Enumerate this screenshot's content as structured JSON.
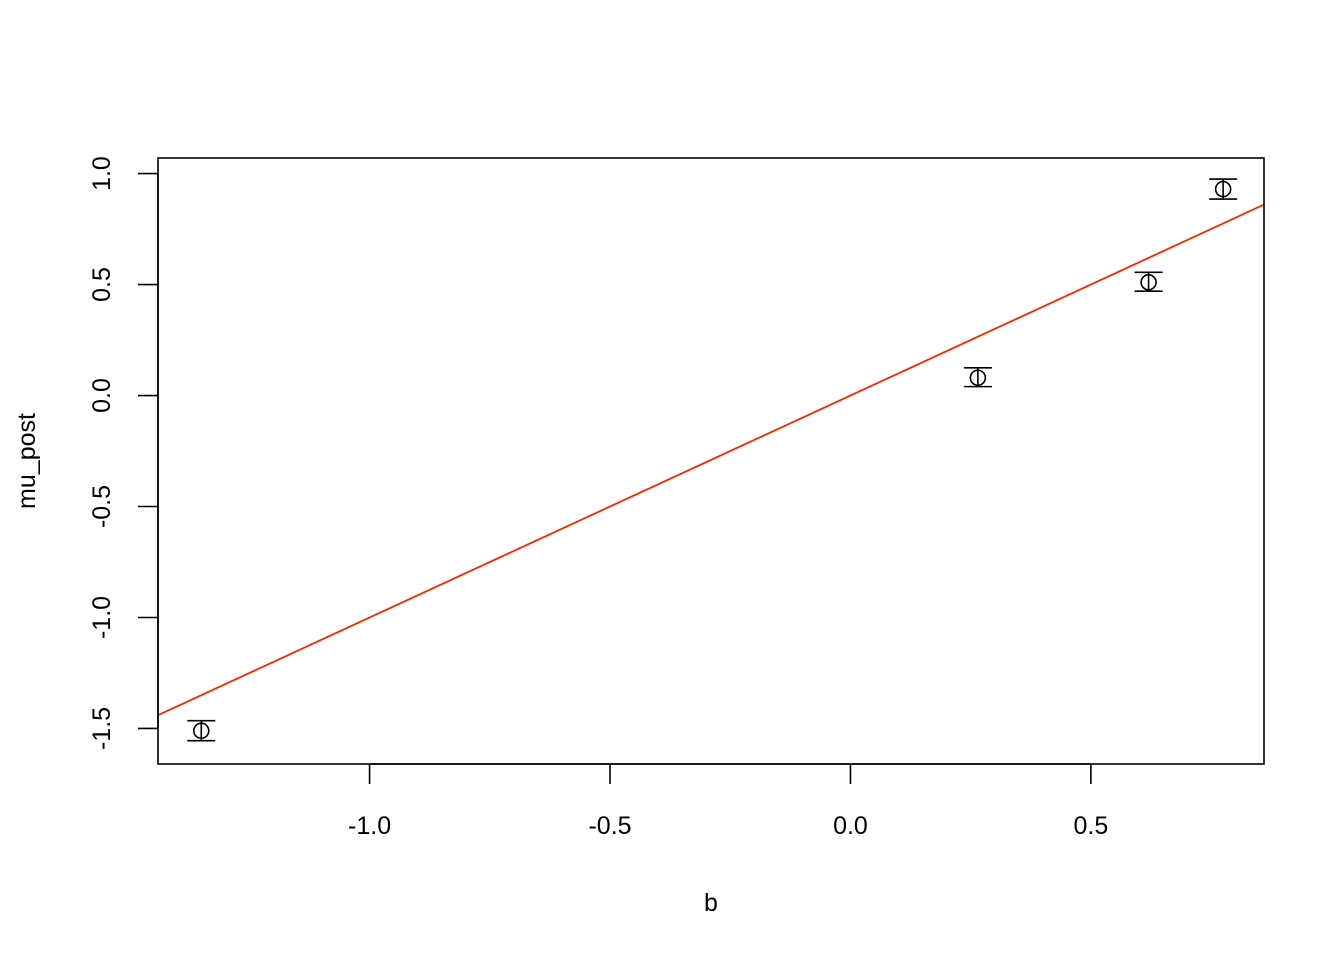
{
  "chart_data": {
    "type": "scatter",
    "title": "",
    "xlabel": "b",
    "ylabel": "mu_post",
    "xlim": [
      -1.44,
      0.86
    ],
    "ylim": [
      -1.66,
      1.07
    ],
    "x_ticks": [
      -1.0,
      -0.5,
      0.0,
      0.5
    ],
    "x_tick_labels": [
      "-1.0",
      "-0.5",
      "0.0",
      "0.5"
    ],
    "y_ticks": [
      -1.5,
      -1.0,
      -0.5,
      0.0,
      0.5,
      1.0
    ],
    "y_tick_labels": [
      "-1.5",
      "-1.0",
      "-0.5",
      "0.0",
      "0.5",
      "1.0"
    ],
    "grid": false,
    "legend": "none",
    "points": [
      {
        "x": -1.35,
        "y": -1.51,
        "lower": -1.555,
        "upper": -1.465
      },
      {
        "x": 0.265,
        "y": 0.08,
        "lower": 0.04,
        "upper": 0.125
      },
      {
        "x": 0.62,
        "y": 0.51,
        "lower": 0.47,
        "upper": 0.555
      },
      {
        "x": 0.775,
        "y": 0.93,
        "lower": 0.885,
        "upper": 0.975
      }
    ],
    "reference_line": {
      "intercept": 0.0,
      "slope": 1.0,
      "color": "#ff2500"
    },
    "point_color": "#000000"
  }
}
